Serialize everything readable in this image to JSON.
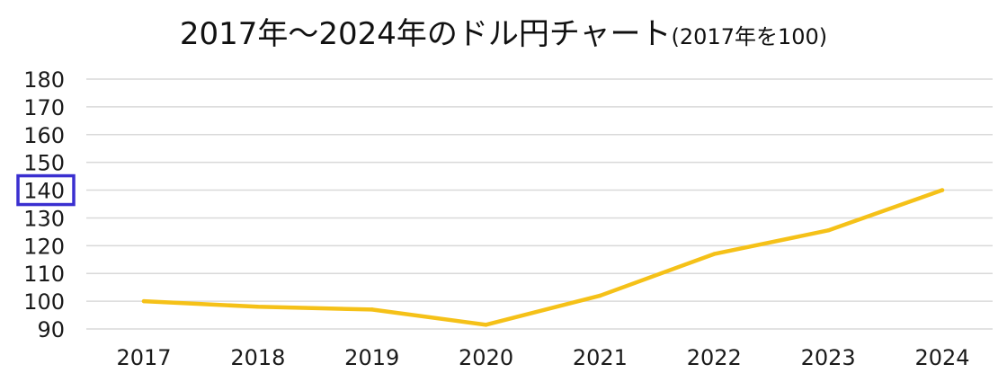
{
  "title": {
    "main": "2017年〜2024年のドル円チャート",
    "sub": "(2017年を100)"
  },
  "chart_data": {
    "type": "line",
    "categories": [
      "2017",
      "2018",
      "2019",
      "2020",
      "2021",
      "2022",
      "2023",
      "2024"
    ],
    "series": [
      {
        "values": [
          100,
          98,
          97,
          91.5,
          102,
          117,
          125.5,
          140
        ]
      }
    ],
    "ylim": [
      90,
      180
    ],
    "yticks": [
      "90",
      "100",
      "110",
      "120",
      "130",
      "140",
      "150",
      "160",
      "170",
      "180"
    ],
    "grid": true,
    "line_color": "#f5c118",
    "highlight": {
      "tick": "140",
      "color": "#3a2fd0"
    }
  }
}
